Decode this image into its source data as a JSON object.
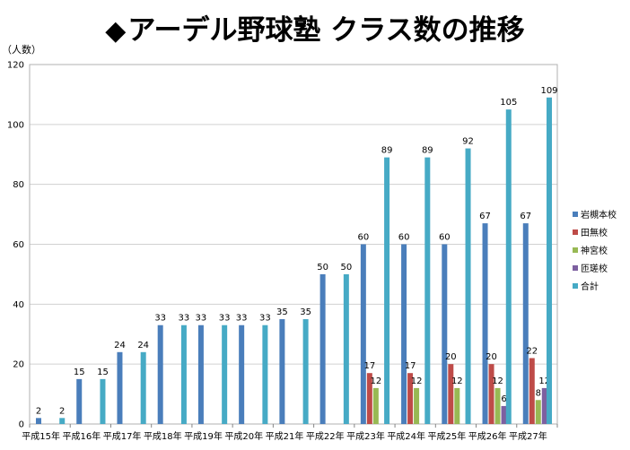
{
  "title": "アーデル野球塾 クラス数の推移",
  "title_marker": "◆",
  "chart_data": {
    "type": "bar",
    "ylabel": "（人数）",
    "ylim": [
      0,
      120
    ],
    "yticks": [
      0,
      20,
      40,
      60,
      80,
      100,
      120
    ],
    "grid": "horizontal",
    "legend_position": "right",
    "categories": [
      "平成15年",
      "平成16年",
      "平成17年",
      "平成18年",
      "平成19年",
      "平成20年",
      "平成21年",
      "平成22年",
      "平成23年",
      "平成24年",
      "平成25年",
      "平成26年",
      "平成27年"
    ],
    "series": [
      {
        "name": "岩槻本校",
        "color": "#4a7ebb",
        "values": [
          2,
          15,
          24,
          33,
          33,
          33,
          35,
          50,
          60,
          60,
          60,
          67,
          67
        ]
      },
      {
        "name": "田無校",
        "color": "#be4b48",
        "values": [
          null,
          null,
          null,
          null,
          null,
          null,
          null,
          null,
          17,
          17,
          20,
          20,
          22
        ]
      },
      {
        "name": "神宮校",
        "color": "#98b954",
        "values": [
          null,
          null,
          null,
          null,
          null,
          null,
          null,
          null,
          12,
          12,
          12,
          12,
          8
        ]
      },
      {
        "name": "匝瑳校",
        "color": "#7d60a0",
        "values": [
          null,
          null,
          null,
          null,
          null,
          null,
          null,
          null,
          null,
          null,
          null,
          6,
          12
        ]
      },
      {
        "name": "合計",
        "color": "#46aac5",
        "values": [
          2,
          15,
          24,
          33,
          33,
          33,
          35,
          50,
          89,
          89,
          92,
          105,
          109
        ]
      }
    ]
  }
}
